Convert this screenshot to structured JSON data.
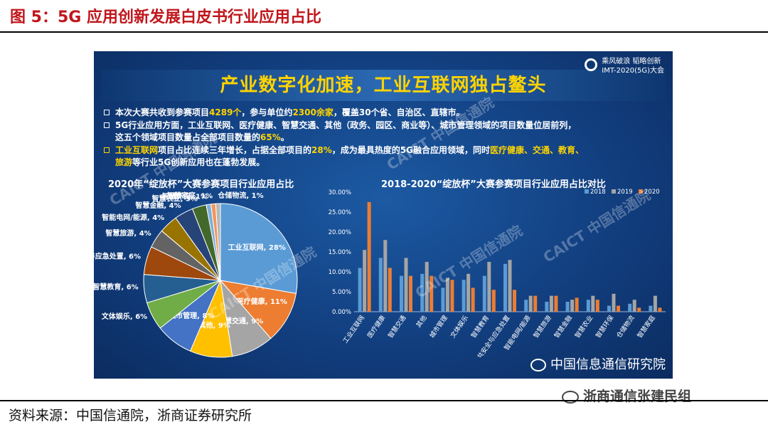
{
  "page": {
    "title": "图 5：5G 应用创新发展白皮书行业应用占比",
    "source": "资料来源：中国信通院，浙商证券研究所",
    "wechat_watermark": "浙商通信张建民组"
  },
  "slide": {
    "headline": "产业数字化加速，工业互联网独占鳌头",
    "logo_line1": "乘风破浪 韬略创新",
    "logo_line2": "IMT-2020(5G)大会",
    "footer": "中国信息通信研究院",
    "watermark": "CAICT 中国信通院",
    "bullets": [
      {
        "pre": "本次大赛共收到参赛项目",
        "h1": "4289个",
        "mid": "，参与单位约",
        "h2": "2300余家",
        "post": "，覆盖30个省、自治区、直辖市。"
      },
      {
        "line1": "5G行业应用方面，工业互联网、医疗健康、智慧交通、其他（政务、园区、商业等）、城市管理领域的项目数量位居前列，",
        "line2_pre": "这五个领域项目数量占全部项目数量的",
        "line2_h": "65%",
        "line2_post": "。"
      },
      {
        "h1": "工业互联网",
        "mid1": "项目占比连续三年增长，占据全部项目的",
        "h2": "28%",
        "mid2": "，成为最具热度的5G融合应用领域，同时",
        "h3": "医疗健康、交通、教育、",
        "h4": "旅游",
        "post": "等行业5G创新应用也在蓬勃发展。"
      }
    ]
  },
  "chart_data": [
    {
      "type": "pie",
      "title": "2020年“绽放杯”大赛参赛项目行业应用占比",
      "slices": [
        {
          "label": "工业互联网",
          "pct_label": "28%",
          "value": 28,
          "color": "#5b9bd5"
        },
        {
          "label": "医疗健康",
          "pct_label": "11%",
          "value": 11,
          "color": "#ed7d31"
        },
        {
          "label": "智慧交通",
          "pct_label": "9%",
          "value": 9,
          "color": "#a5a5a5"
        },
        {
          "label": "其他",
          "pct_label": "9%",
          "value": 9,
          "color": "#ffc000"
        },
        {
          "label": "城市管理",
          "pct_label": "8%",
          "value": 8,
          "color": "#4472c4"
        },
        {
          "label": "文体娱乐",
          "pct_label": "6%",
          "value": 6,
          "color": "#70ad47"
        },
        {
          "label": "智慧教育",
          "pct_label": "6%",
          "value": 6,
          "color": "#255e91"
        },
        {
          "label": "公共安全与应急处置",
          "pct_label": "6%",
          "value": 6,
          "color": "#9e480e"
        },
        {
          "label": "智慧旅游",
          "pct_label": "4%",
          "value": 4,
          "color": "#636363"
        },
        {
          "label": "智能电网/能源",
          "pct_label": "4%",
          "value": 4,
          "color": "#997300"
        },
        {
          "label": "智慧金融",
          "pct_label": "4%",
          "value": 4,
          "color": "#264478"
        },
        {
          "label": "智慧农业",
          "pct_label": "3%",
          "value": 3,
          "color": "#43682b"
        },
        {
          "label": "智慧环保",
          "pct_label": "1%",
          "value": 1,
          "color": "#7cafdd"
        },
        {
          "label": "智慧家庭",
          "pct_label": "1%",
          "value": 1,
          "color": "#f1975a"
        },
        {
          "label": "仓储物流",
          "pct_label": "1%",
          "value": 1,
          "color": "#b7b7b7"
        }
      ]
    },
    {
      "type": "bar",
      "title": "2018-2020“绽放杯”大赛参赛项目行业应用占比对比",
      "categories": [
        "工业互联网",
        "医疗健康",
        "智慧交通",
        "其他",
        "城市管理",
        "文体娱乐",
        "智慧教育",
        "公共安全与应急处置",
        "智能电网/能源",
        "智慧旅游",
        "智慧金融",
        "智慧农业",
        "智慧环保",
        "仓储物流",
        "智慧家庭"
      ],
      "series": [
        {
          "name": "2018",
          "color": "#5b9bd5",
          "values": [
            11.0,
            13.5,
            9.0,
            9.5,
            6.0,
            8.0,
            9.0,
            12.0,
            3.0,
            2.5,
            2.5,
            3.0,
            1.5,
            2.0,
            1.5
          ]
        },
        {
          "name": "2019",
          "color": "#a5a5a5",
          "values": [
            15.5,
            18.0,
            13.5,
            12.5,
            8.5,
            9.5,
            12.5,
            13.0,
            4.0,
            4.0,
            3.0,
            4.0,
            4.5,
            3.0,
            4.0
          ]
        },
        {
          "name": "2020",
          "color": "#ed7d31",
          "values": [
            27.5,
            11.0,
            9.0,
            9.0,
            8.0,
            6.0,
            5.5,
            5.5,
            4.0,
            4.0,
            3.5,
            3.0,
            1.5,
            1.0,
            1.0
          ]
        }
      ],
      "y_ticks": [
        "0.00%",
        "5.00%",
        "10.00%",
        "15.00%",
        "20.00%",
        "25.00%",
        "30.00%"
      ],
      "ylim": [
        0,
        30
      ],
      "legend": "top-right"
    }
  ]
}
